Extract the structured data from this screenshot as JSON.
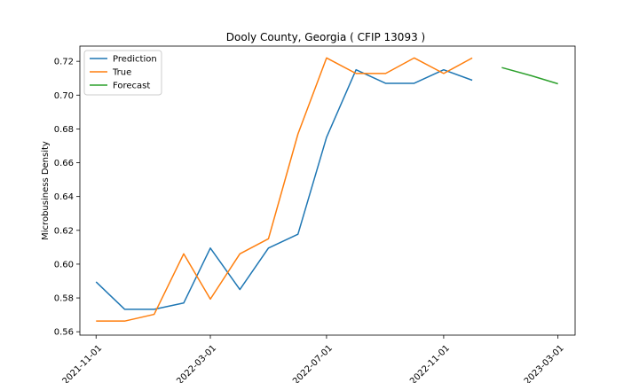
{
  "chart_data": {
    "type": "line",
    "title": "Dooly County, Georgia ( CFIP 13093 )",
    "xlabel": "",
    "ylabel": "Microbusiness Density",
    "x_ticks": [
      "2021-11-01",
      "2022-03-01",
      "2022-07-01",
      "2022-11-01",
      "2023-03-01"
    ],
    "y_ticks": [
      "0.56",
      "0.58",
      "0.60",
      "0.62",
      "0.64",
      "0.66",
      "0.68",
      "0.70",
      "0.72"
    ],
    "ylim": [
      0.558,
      0.729
    ],
    "xlim": [
      "2021-10-15",
      "2023-03-19"
    ],
    "legend_position": "upper-left",
    "grid": false,
    "series": [
      {
        "name": "Prediction",
        "color": "#1f77b4",
        "x": [
          "2021-11-01",
          "2021-12-01",
          "2022-01-01",
          "2022-02-01",
          "2022-03-01",
          "2022-04-01",
          "2022-05-01",
          "2022-06-01",
          "2022-07-01",
          "2022-08-01",
          "2022-09-01",
          "2022-10-01",
          "2022-11-01",
          "2022-12-01"
        ],
        "y": [
          0.5895,
          0.5733,
          0.5733,
          0.577,
          0.6095,
          0.585,
          0.6095,
          0.6177,
          0.675,
          0.715,
          0.707,
          0.707,
          0.715,
          0.7088
        ]
      },
      {
        "name": "True",
        "color": "#ff7f0e",
        "x": [
          "2021-11-01",
          "2021-12-01",
          "2022-01-01",
          "2022-02-01",
          "2022-03-01",
          "2022-04-01",
          "2022-05-01",
          "2022-06-01",
          "2022-07-01",
          "2022-08-01",
          "2022-09-01",
          "2022-10-01",
          "2022-11-01",
          "2022-12-01"
        ],
        "y": [
          0.5663,
          0.5663,
          0.5703,
          0.6061,
          0.5793,
          0.6061,
          0.615,
          0.677,
          0.722,
          0.7128,
          0.7128,
          0.722,
          0.7128,
          0.722
        ]
      },
      {
        "name": "Forecast",
        "color": "#2ca02c",
        "x": [
          "2023-01-01",
          "2023-02-01",
          "2023-03-01"
        ],
        "y": [
          0.7163,
          0.7115,
          0.7067
        ]
      }
    ]
  }
}
